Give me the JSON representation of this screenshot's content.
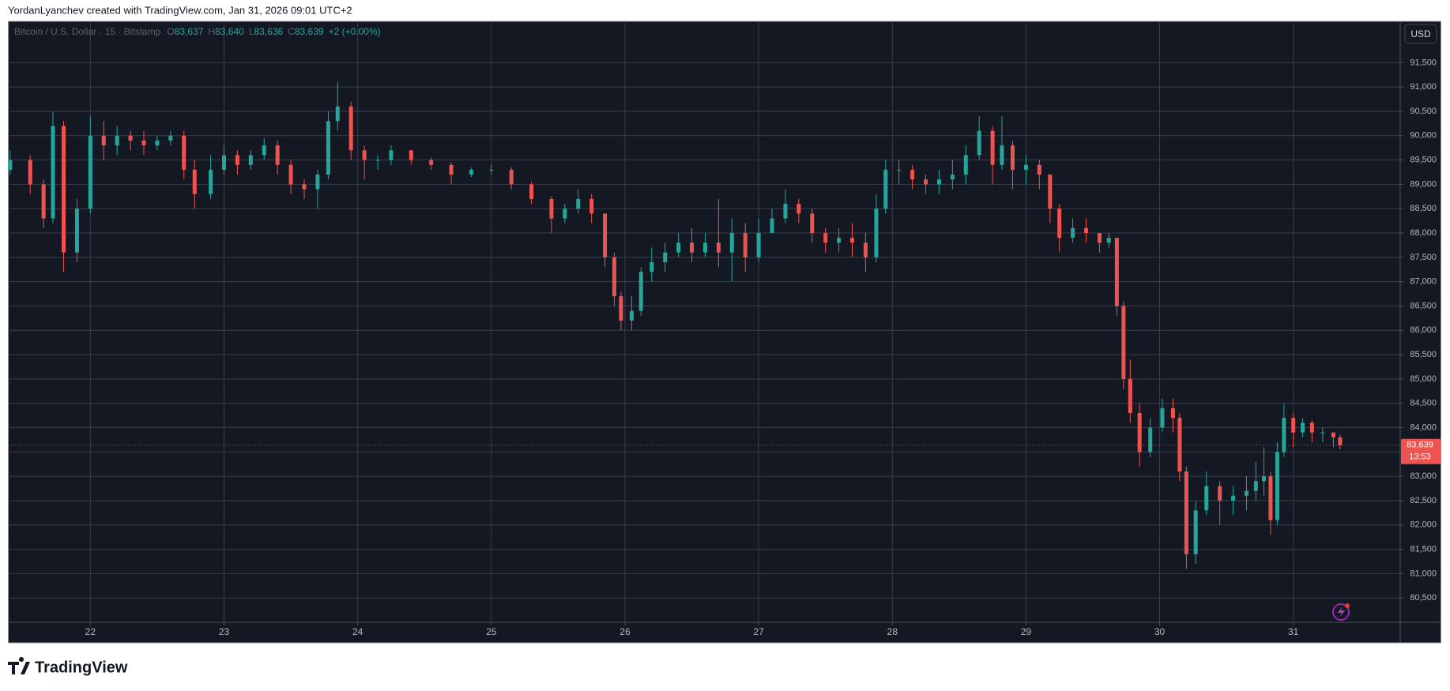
{
  "header": "YordanLyanchev created with TradingView.com, Jan 31, 2026 09:01 UTC+2",
  "footer": {
    "brand": "TradingView"
  },
  "chart_data": {
    "type": "candlestick",
    "title": "Bitcoin / U.S. Dollar · 15 · Bitstamp",
    "ohlc_legend": [
      {
        "label": "O",
        "value": "83,637"
      },
      {
        "label": "H",
        "value": "83,640"
      },
      {
        "label": "L",
        "value": "83,636"
      },
      {
        "label": "C",
        "value": "83,639"
      }
    ],
    "change": "+2 (+0.00%)",
    "currency": "USD",
    "last_price_label": "83,639",
    "countdown": "13:53",
    "up_color": "#26a69a",
    "down_color": "#ef5350",
    "grid": true,
    "x": [
      21.4,
      21.55,
      21.65,
      21.72,
      21.8,
      21.9,
      22.0,
      22.1,
      22.2,
      22.3,
      22.4,
      22.5,
      22.6,
      22.7,
      22.78,
      22.9,
      23.0,
      23.1,
      23.2,
      23.3,
      23.4,
      23.5,
      23.6,
      23.7,
      23.78,
      23.85,
      23.95,
      24.05,
      24.15,
      24.25,
      24.4,
      24.55,
      24.7,
      24.85,
      25.0,
      25.15,
      25.3,
      25.45,
      25.55,
      25.65,
      25.75,
      25.85,
      25.92,
      25.97,
      26.05,
      26.12,
      26.2,
      26.3,
      26.4,
      26.5,
      26.6,
      26.7,
      26.8,
      26.9,
      27.0,
      27.1,
      27.2,
      27.3,
      27.4,
      27.5,
      27.6,
      27.7,
      27.8,
      27.88,
      27.95,
      28.05,
      28.15,
      28.25,
      28.35,
      28.45,
      28.55,
      28.65,
      28.75,
      28.82,
      28.9,
      29.0,
      29.1,
      29.18,
      29.25,
      29.35,
      29.45,
      29.55,
      29.62,
      29.68,
      29.73,
      29.78,
      29.85,
      29.93,
      30.02,
      30.1,
      30.15,
      30.2,
      30.27,
      30.35,
      30.45,
      30.55,
      30.65,
      30.72,
      30.78,
      30.83,
      30.88,
      30.93,
      31.0,
      31.07,
      31.14,
      31.22,
      31.3,
      31.35
    ],
    "open": [
      89300,
      89500,
      89000,
      88300,
      90200,
      87600,
      88500,
      90000,
      89800,
      90000,
      89900,
      89800,
      89900,
      90000,
      89300,
      88800,
      89300,
      89600,
      89400,
      89600,
      89800,
      89400,
      89000,
      88900,
      89200,
      90300,
      90600,
      89700,
      89500,
      89500,
      89700,
      89500,
      89400,
      89200,
      89300,
      89300,
      89000,
      88700,
      88300,
      88500,
      88700,
      88400,
      87500,
      86700,
      86200,
      86400,
      87200,
      87400,
      87600,
      87800,
      87600,
      87800,
      87600,
      88000,
      87500,
      88000,
      88300,
      88600,
      88400,
      88000,
      87800,
      87900,
      87800,
      87500,
      88500,
      89300,
      89300,
      89100,
      89000,
      89100,
      89200,
      89600,
      90100,
      89400,
      89800,
      89300,
      89400,
      89200,
      88500,
      87900,
      88100,
      88000,
      87800,
      87900,
      86500,
      85000,
      84300,
      83500,
      84000,
      84400,
      84200,
      83100,
      81400,
      82300,
      82800,
      82500,
      82600,
      82700,
      82900,
      83000,
      82100,
      83500,
      84200,
      83900,
      84100,
      83900,
      83900,
      83800
    ],
    "high": [
      89700,
      89600,
      89100,
      90500,
      90300,
      88700,
      90400,
      90300,
      90200,
      90100,
      90100,
      90000,
      90100,
      90100,
      89500,
      89600,
      89800,
      89700,
      89700,
      89950,
      89900,
      89500,
      89100,
      89300,
      90500,
      91100,
      90700,
      89800,
      89600,
      89800,
      89700,
      89550,
      89450,
      89350,
      89400,
      89350,
      89050,
      88750,
      88600,
      88900,
      88800,
      88400,
      87600,
      86800,
      86700,
      87300,
      87700,
      87800,
      88000,
      88100,
      88000,
      88700,
      88300,
      88200,
      88300,
      88500,
      88900,
      88700,
      88500,
      88100,
      88100,
      88200,
      88000,
      88800,
      89500,
      89500,
      89400,
      89200,
      89300,
      89500,
      89800,
      90400,
      90200,
      90400,
      89900,
      89600,
      89500,
      89200,
      88600,
      88300,
      88300,
      88000,
      88000,
      87900,
      86600,
      85400,
      84500,
      84200,
      84600,
      84600,
      84300,
      83200,
      82500,
      83100,
      82900,
      82800,
      83000,
      83300,
      83600,
      83100,
      83700,
      84500,
      84300,
      84200,
      84150,
      84000,
      83900,
      83850
    ],
    "low": [
      89200,
      88800,
      88100,
      88200,
      87200,
      87400,
      88400,
      89500,
      89600,
      89700,
      89600,
      89700,
      89800,
      89100,
      88500,
      88700,
      89200,
      89200,
      89300,
      89500,
      89200,
      88800,
      88700,
      88500,
      89100,
      90100,
      89500,
      89100,
      89300,
      89400,
      89400,
      89300,
      89000,
      89150,
      89200,
      88900,
      88600,
      88000,
      88200,
      88400,
      88200,
      87300,
      86500,
      86000,
      86000,
      86300,
      87000,
      87200,
      87500,
      87400,
      87500,
      87300,
      87000,
      87200,
      87400,
      88000,
      88200,
      88200,
      87800,
      87600,
      87600,
      87500,
      87200,
      87400,
      88400,
      89000,
      88900,
      88800,
      88800,
      88900,
      89000,
      89500,
      89000,
      89300,
      88900,
      89000,
      88900,
      88200,
      87600,
      87800,
      87800,
      87600,
      87700,
      86300,
      84800,
      84100,
      83200,
      83400,
      83900,
      83900,
      82900,
      81100,
      81200,
      82200,
      82000,
      82200,
      82300,
      82500,
      82600,
      81800,
      82000,
      83400,
      83600,
      83800,
      83700,
      83700,
      83600,
      83550
    ],
    "close": [
      89500,
      89000,
      88300,
      90200,
      87600,
      88500,
      90000,
      89800,
      90000,
      89900,
      89800,
      89900,
      90000,
      89300,
      88800,
      89300,
      89600,
      89400,
      89600,
      89800,
      89400,
      89000,
      88900,
      89200,
      90300,
      90600,
      89700,
      89500,
      89500,
      89700,
      89500,
      89400,
      89200,
      89300,
      89300,
      89000,
      88700,
      88300,
      88500,
      88700,
      88400,
      87500,
      86700,
      86200,
      86400,
      87200,
      87400,
      87600,
      87800,
      87600,
      87800,
      87600,
      88000,
      87500,
      88000,
      88300,
      88600,
      88400,
      88000,
      87800,
      87900,
      87800,
      87500,
      88500,
      89300,
      89300,
      89100,
      89000,
      89100,
      89200,
      89600,
      90100,
      89400,
      89800,
      89300,
      89400,
      89200,
      88500,
      87900,
      88100,
      88000,
      87800,
      87900,
      86500,
      85000,
      84300,
      83500,
      84000,
      84400,
      84200,
      83100,
      81400,
      82300,
      82800,
      82500,
      82600,
      82700,
      82900,
      83000,
      82100,
      83500,
      84200,
      83900,
      84100,
      83900,
      83900,
      83800,
      83639
    ],
    "xlim": [
      21.386,
      31.8
    ],
    "xticks": [
      22,
      23,
      24,
      25,
      26,
      27,
      28,
      29,
      30,
      31
    ],
    "ylim": [
      80000,
      92350
    ],
    "yticks": [
      {
        "value": 80500,
        "label": "80,500"
      },
      {
        "value": 81000,
        "label": "81,000"
      },
      {
        "value": 81500,
        "label": "81,500"
      },
      {
        "value": 82000,
        "label": "82,000"
      },
      {
        "value": 82500,
        "label": "82,500"
      },
      {
        "value": 83000,
        "label": "83,000"
      },
      {
        "value": 83500,
        "label": "83,500"
      },
      {
        "value": 84000,
        "label": "84,000"
      },
      {
        "value": 84500,
        "label": "84,500"
      },
      {
        "value": 85000,
        "label": "85,000"
      },
      {
        "value": 85500,
        "label": "85,500"
      },
      {
        "value": 86000,
        "label": "86,000"
      },
      {
        "value": 86500,
        "label": "86,500"
      },
      {
        "value": 87000,
        "label": "87,000"
      },
      {
        "value": 87500,
        "label": "87,500"
      },
      {
        "value": 88000,
        "label": "88,000"
      },
      {
        "value": 88500,
        "label": "88,500"
      },
      {
        "value": 89000,
        "label": "89,000"
      },
      {
        "value": 89500,
        "label": "89,500"
      },
      {
        "value": 90000,
        "label": "90,000"
      },
      {
        "value": 90500,
        "label": "90,500"
      },
      {
        "value": 91000,
        "label": "91,000"
      },
      {
        "value": 91500,
        "label": "91,500"
      }
    ]
  }
}
